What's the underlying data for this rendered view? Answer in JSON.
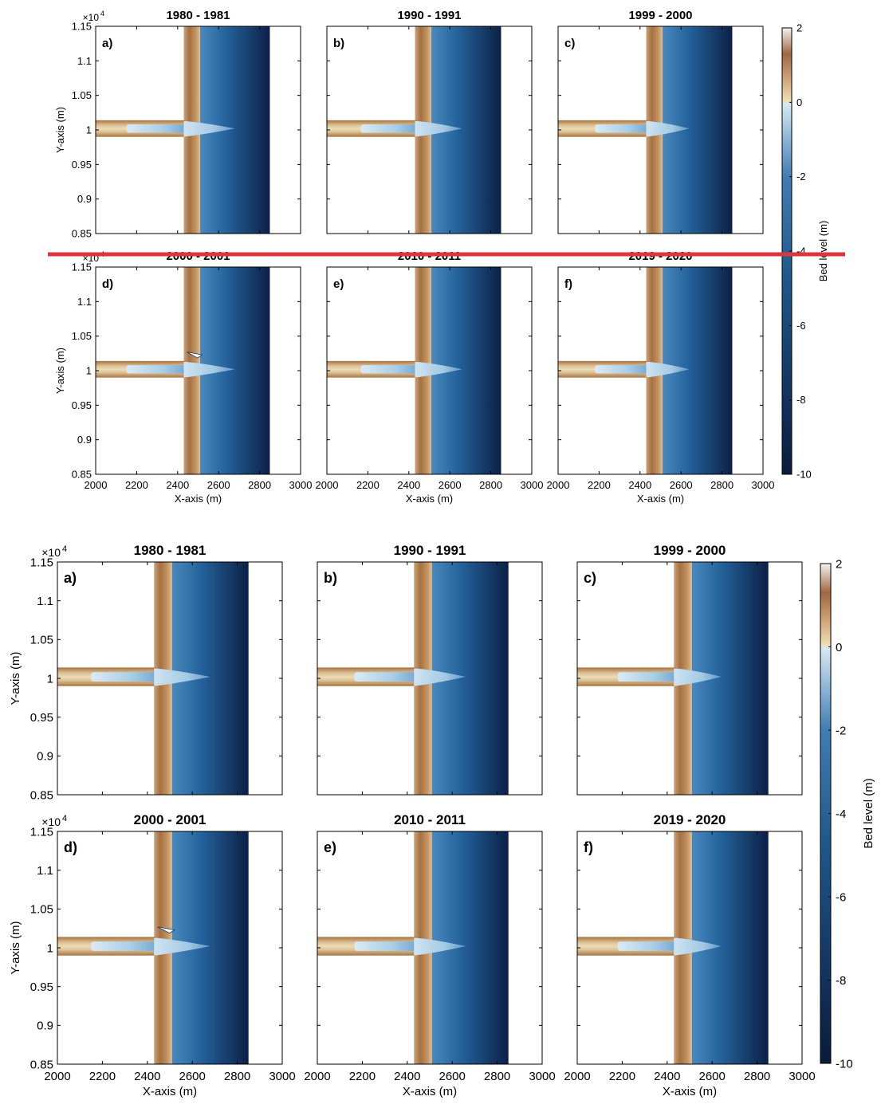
{
  "figure": {
    "colorbar_label": "Bed level (m)",
    "y_multiplier": "×10",
    "y_multiplier_exp": "4",
    "separator_color": "#d9363e"
  },
  "chart_data": [
    {
      "figure": "top",
      "type": "heatmap",
      "quantity": "Bed level (m)",
      "x_ticks": [
        "2000",
        "2200",
        "2400",
        "2600",
        "2800",
        "3000"
      ],
      "x_range": [
        2000,
        3000
      ],
      "y_ticks": [
        "0.85",
        "0.9",
        "0.95",
        "1",
        "1.05",
        "1.1",
        "1.15"
      ],
      "y_range": [
        8500,
        11500
      ],
      "y_multiplier": "×10^4",
      "xlabel": "X-axis (m)",
      "ylabel": "Y-axis (m)",
      "colorbar_ticks": [
        "2",
        "0",
        "-2",
        "-4",
        "-6",
        "-8",
        "-10"
      ],
      "colorbar_range": [
        -10,
        2
      ],
      "colormap_stops": [
        {
          "value": 2,
          "color": "#f4f2f1"
        },
        {
          "value": 1.3,
          "color": "#9e6840"
        },
        {
          "value": 0.6,
          "color": "#d1a77a"
        },
        {
          "value": 0.05,
          "color": "#f0deb2"
        },
        {
          "value": -0.05,
          "color": "#d6e8f4"
        },
        {
          "value": -2,
          "color": "#3f7db5"
        },
        {
          "value": -5,
          "color": "#1c5489"
        },
        {
          "value": -10,
          "color": "#0a1b3d"
        }
      ],
      "panels": [
        {
          "letter": "a)",
          "title": "1980 - 1981"
        },
        {
          "letter": "b)",
          "title": "1990 - 1991"
        },
        {
          "letter": "c)",
          "title": "1999 - 2000"
        },
        {
          "letter": "d)",
          "title": "2000 - 2001"
        },
        {
          "letter": "e)",
          "title": "2010 - 2011"
        },
        {
          "letter": "f)",
          "title": "2019 - 2020"
        }
      ]
    },
    {
      "figure": "bottom",
      "type": "heatmap",
      "quantity": "Bed level (m)",
      "x_ticks": [
        "2000",
        "2200",
        "2400",
        "2600",
        "2800",
        "3000"
      ],
      "x_range": [
        2000,
        3000
      ],
      "y_ticks": [
        "0.85",
        "0.9",
        "0.95",
        "1",
        "1.05",
        "1.1",
        "1.15"
      ],
      "y_range": [
        8500,
        11500
      ],
      "y_multiplier": "×10^4",
      "xlabel": "X-axis (m)",
      "ylabel": "Y-axis (m)",
      "colorbar_ticks": [
        "2",
        "0",
        "-2",
        "-4",
        "-6",
        "-8",
        "-10"
      ],
      "colorbar_range": [
        -10,
        2
      ],
      "colormap_stops": [
        {
          "value": 2,
          "color": "#f4f2f1"
        },
        {
          "value": 1.3,
          "color": "#9e6840"
        },
        {
          "value": 0.6,
          "color": "#d1a77a"
        },
        {
          "value": 0.05,
          "color": "#f0deb2"
        },
        {
          "value": -0.05,
          "color": "#d6e8f4"
        },
        {
          "value": -2,
          "color": "#3f7db5"
        },
        {
          "value": -5,
          "color": "#1c5489"
        },
        {
          "value": -10,
          "color": "#0a1b3d"
        }
      ],
      "panels": [
        {
          "letter": "a)",
          "title": "1980 - 1981"
        },
        {
          "letter": "b)",
          "title": "1990 - 1991"
        },
        {
          "letter": "c)",
          "title": "1999 - 2000"
        },
        {
          "letter": "d)",
          "title": "2000 - 2001"
        },
        {
          "letter": "e)",
          "title": "2010 - 2011"
        },
        {
          "letter": "f)",
          "title": "2019 - 2020"
        }
      ]
    }
  ]
}
